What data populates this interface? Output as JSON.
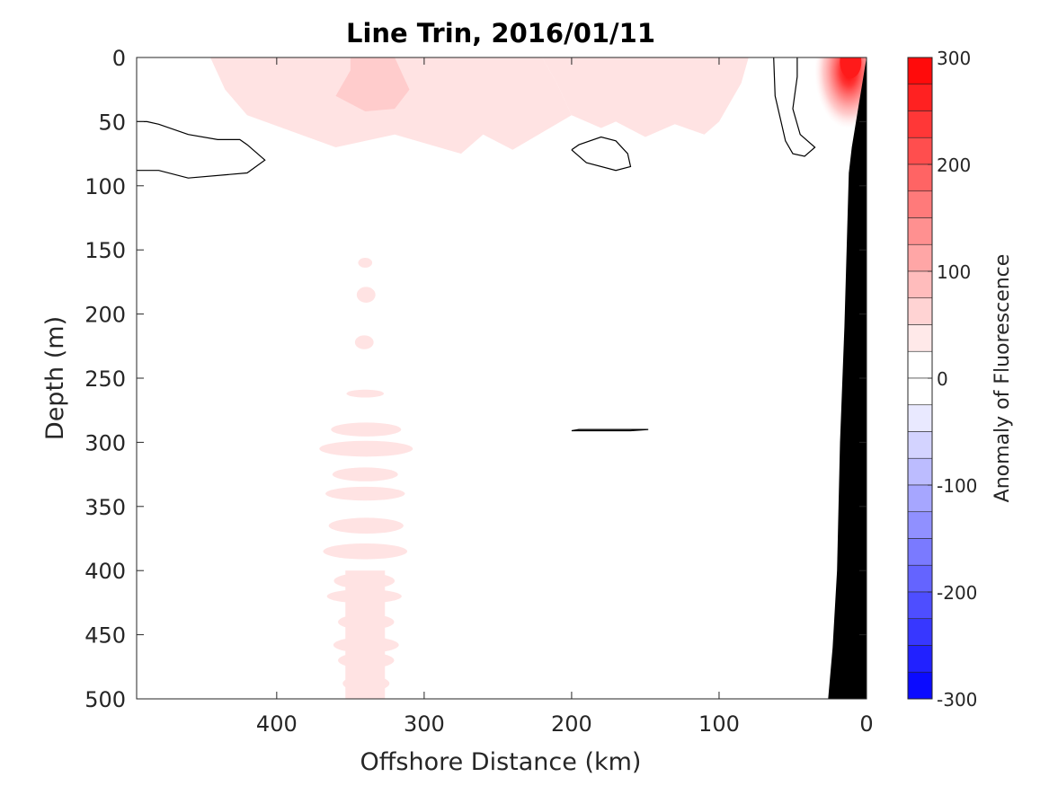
{
  "chart_data": {
    "type": "heatmap",
    "title": "Line Trin, 2016/01/11",
    "xlabel": "Offshore Distance (km)",
    "ylabel": "Depth (m)",
    "x_reversed": true,
    "xlim": [
      0,
      495
    ],
    "ylim": [
      0,
      500
    ],
    "y_reversed": true,
    "x_ticks": [
      "400",
      "300",
      "200",
      "100",
      "0"
    ],
    "x_tick_values": [
      400,
      300,
      200,
      100,
      0
    ],
    "y_ticks": [
      "0",
      "50",
      "100",
      "150",
      "200",
      "250",
      "300",
      "350",
      "400",
      "450",
      "500"
    ],
    "y_tick_values": [
      0,
      50,
      100,
      150,
      200,
      250,
      300,
      350,
      400,
      450,
      500
    ],
    "colorbar": {
      "label": "Anomaly of Fluorescence",
      "range": [
        -300,
        300
      ],
      "levels": 24,
      "ticks": [
        "300",
        "200",
        "100",
        "0",
        "-100",
        "-200",
        "-300"
      ],
      "tick_values": [
        300,
        200,
        100,
        0,
        -100,
        -200,
        -300
      ],
      "colors": {
        "positive": "#ff0000",
        "zero": "#ffffff",
        "negative": "#0000ff"
      }
    },
    "series": [
      {
        "kind": "filled_anomaly",
        "polygons": [
          {
            "level": 25,
            "points": [
              [
                445,
                0
              ],
              [
                380,
                0
              ],
              [
                350,
                0
              ],
              [
                300,
                0
              ],
              [
                250,
                0
              ],
              [
                220,
                0
              ],
              [
                210,
                20
              ],
              [
                200,
                45
              ],
              [
                180,
                55
              ],
              [
                170,
                50
              ],
              [
                150,
                62
              ],
              [
                130,
                52
              ],
              [
                110,
                60
              ],
              [
                100,
                50
              ],
              [
                95,
                40
              ],
              [
                85,
                20
              ],
              [
                80,
                0
              ],
              [
                130,
                0
              ],
              [
                160,
                0
              ],
              [
                175,
                0
              ],
              [
                200,
                0
              ],
              [
                240,
                0
              ],
              [
                270,
                0
              ],
              [
                280,
                15
              ],
              [
                300,
                35
              ],
              [
                320,
                40
              ],
              [
                340,
                20
              ],
              [
                380,
                25
              ],
              [
                395,
                25
              ],
              [
                415,
                20
              ],
              [
                430,
                10
              ],
              [
                440,
                5
              ]
            ],
            "note": "upper band part"
          },
          {
            "level": 25,
            "points": [
              [
                445,
                0
              ],
              [
                435,
                25
              ],
              [
                420,
                45
              ],
              [
                360,
                70
              ],
              [
                320,
                60
              ],
              [
                275,
                75
              ],
              [
                260,
                60
              ],
              [
                240,
                72
              ],
              [
                200,
                45
              ],
              [
                210,
                20
              ],
              [
                220,
                0
              ]
            ]
          },
          {
            "level": 50,
            "points": [
              [
                350,
                0
              ],
              [
                320,
                0
              ],
              [
                310,
                25
              ],
              [
                320,
                40
              ],
              [
                340,
                42
              ],
              [
                360,
                30
              ],
              [
                350,
                10
              ]
            ]
          },
          {
            "level": 25,
            "points": [
              [
                110,
                0
              ],
              [
                95,
                0
              ],
              [
                88,
                8
              ],
              [
                90,
                20
              ],
              [
                105,
                15
              ],
              [
                112,
                5
              ]
            ]
          },
          {
            "level": 25,
            "points": [
              [
                185,
                35
              ],
              [
                178,
                40
              ],
              [
                180,
                45
              ],
              [
                188,
                42
              ]
            ]
          }
        ]
      },
      {
        "kind": "coastal_bloom",
        "center": [
          12,
          5
        ],
        "peak_level": 300
      },
      {
        "kind": "deep_streak",
        "x_center": 340,
        "depth_range": [
          160,
          500
        ]
      },
      {
        "kind": "zero_contours",
        "lines": [
          [
            [
              495,
              50
            ],
            [
              488,
              50
            ],
            [
              480,
              52
            ],
            [
              460,
              60
            ],
            [
              440,
              64
            ],
            [
              425,
              64
            ],
            [
              420,
              68
            ],
            [
              408,
              80
            ],
            [
              420,
              90
            ],
            [
              460,
              94
            ],
            [
              480,
              88
            ],
            [
              495,
              88
            ]
          ],
          [
            [
              200,
              72
            ],
            [
              195,
              68
            ],
            [
              180,
              62
            ],
            [
              170,
              65
            ],
            [
              162,
              75
            ],
            [
              160,
              85
            ],
            [
              170,
              88
            ],
            [
              190,
              82
            ],
            [
              200,
              72
            ]
          ],
          [
            [
              63,
              0
            ],
            [
              62,
              30
            ],
            [
              58,
              50
            ],
            [
              55,
              65
            ],
            [
              50,
              75
            ],
            [
              42,
              77
            ],
            [
              35,
              70
            ],
            [
              45,
              60
            ],
            [
              50,
              40
            ],
            [
              47,
              15
            ],
            [
              47,
              0
            ]
          ],
          [
            [
              200,
              291
            ],
            [
              195,
              290
            ],
            [
              180,
              290
            ],
            [
              160,
              290
            ],
            [
              148,
              290
            ],
            [
              160,
              291
            ],
            [
              180,
              291
            ],
            [
              195,
              291
            ],
            [
              200,
              291
            ]
          ]
        ]
      },
      {
        "kind": "bathymetry",
        "points": [
          [
            0,
            0
          ],
          [
            10,
            70
          ],
          [
            12,
            90
          ],
          [
            15,
            210
          ],
          [
            18,
            300
          ],
          [
            20,
            400
          ],
          [
            23,
            460
          ],
          [
            26,
            500
          ],
          [
            0,
            500
          ]
        ],
        "color": "#000000"
      }
    ]
  }
}
